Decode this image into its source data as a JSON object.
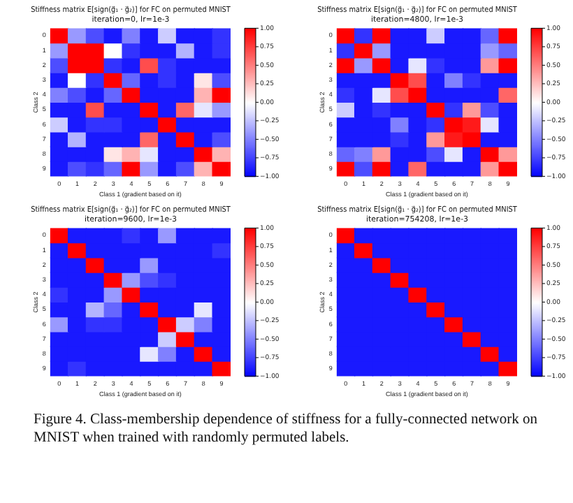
{
  "chart_data": [
    {
      "type": "heatmap",
      "title": "Stiffness matrix E[sign(g⃗₁ · g⃗₂)] for FC on permuted MNIST",
      "subtitle": "iteration=0, lr=1e-3",
      "xlabel": "Class 1 (gradient based on it)",
      "ylabel": "Class 2",
      "categories": [
        "0",
        "1",
        "2",
        "3",
        "4",
        "5",
        "6",
        "7",
        "8",
        "9"
      ],
      "y_categories": [
        "0",
        "1",
        "2",
        "3",
        "4",
        "5",
        "6",
        "7",
        "8",
        "9"
      ],
      "cells": [
        [
          1,
          -0.4,
          -0.7,
          -0.9,
          -0.5,
          -0.9,
          -0.2,
          -0.9,
          -0.9,
          -0.8
        ],
        [
          -0.4,
          1,
          1,
          0,
          -0.8,
          -0.9,
          -0.9,
          -0.3,
          -0.9,
          -0.8
        ],
        [
          -0.7,
          1,
          1,
          -0.8,
          -0.9,
          0.7,
          -0.8,
          -0.9,
          -0.9,
          -0.9
        ],
        [
          -0.9,
          0,
          -0.8,
          1,
          -0.6,
          -0.9,
          -0.8,
          -0.9,
          0.1,
          -0.7
        ],
        [
          -0.5,
          -0.7,
          -0.9,
          -0.6,
          1,
          -0.9,
          -0.9,
          -0.9,
          0.3,
          1
        ],
        [
          -0.9,
          -0.9,
          0.7,
          -0.9,
          -0.9,
          1,
          -0.9,
          0.6,
          -0.1,
          -0.4
        ],
        [
          -0.2,
          -0.9,
          -0.8,
          -0.8,
          -0.9,
          -0.9,
          1,
          -0.9,
          -0.9,
          -0.9
        ],
        [
          -0.9,
          -0.3,
          -0.9,
          -0.9,
          -0.9,
          0.6,
          -0.9,
          1,
          -0.9,
          -0.7
        ],
        [
          -0.9,
          -0.9,
          -0.9,
          0.1,
          0.3,
          -0.1,
          -0.9,
          -0.9,
          1,
          0.3
        ],
        [
          -0.9,
          -0.7,
          -0.8,
          -0.6,
          1,
          -0.4,
          -0.9,
          -0.7,
          0.3,
          1
        ]
      ],
      "clim": [
        -1,
        1
      ],
      "cticks": [
        {
          "value": -1,
          "label": "−1.00"
        },
        {
          "value": -0.75,
          "label": "−0.75"
        },
        {
          "value": -0.5,
          "label": "−0.50"
        },
        {
          "value": -0.25,
          "label": "−0.25"
        },
        {
          "value": 0,
          "label": "0.00"
        },
        {
          "value": 0.25,
          "label": "0.25"
        },
        {
          "value": 0.5,
          "label": "0.50"
        },
        {
          "value": 0.75,
          "label": "0.75"
        },
        {
          "value": 1,
          "label": "1.00"
        }
      ]
    },
    {
      "type": "heatmap",
      "title": "Stiffness matrix E[sign(g⃗₁ · g⃗₂)] for FC on permuted MNIST",
      "subtitle": "iteration=4800, lr=1e-3",
      "xlabel": "Class 1 (gradient based on it)",
      "ylabel": "Class 2",
      "categories": [
        "0",
        "1",
        "2",
        "3",
        "4",
        "5",
        "6",
        "7",
        "8",
        "9"
      ],
      "y_categories": [
        "0",
        "1",
        "2",
        "3",
        "4",
        "5",
        "6",
        "7",
        "8",
        "9"
      ],
      "cells": [
        [
          1,
          -0.8,
          1,
          -0.9,
          -0.9,
          -0.2,
          -0.9,
          -0.9,
          -0.6,
          1
        ],
        [
          -0.8,
          1,
          -0.4,
          -0.9,
          -0.9,
          -0.9,
          -0.9,
          -0.9,
          -0.4,
          -0.6
        ],
        [
          1,
          -0.4,
          1,
          -0.9,
          -0.1,
          -0.8,
          -0.9,
          -0.9,
          0.4,
          1
        ],
        [
          -0.9,
          -0.9,
          -0.9,
          1,
          0.7,
          -0.9,
          -0.5,
          -0.8,
          -0.9,
          -0.9
        ],
        [
          -0.8,
          -0.9,
          -0.1,
          0.7,
          1,
          -0.9,
          -0.9,
          -0.9,
          -0.9,
          0.6
        ],
        [
          -0.2,
          -0.9,
          -0.8,
          -0.9,
          -0.9,
          1,
          -0.8,
          0.4,
          -0.7,
          -0.9
        ],
        [
          -0.9,
          -0.9,
          -0.9,
          -0.5,
          -0.9,
          -0.8,
          1,
          0.9,
          -0.1,
          -0.9
        ],
        [
          -0.9,
          -0.9,
          -0.9,
          -0.8,
          -0.9,
          0.4,
          0.9,
          1,
          -0.9,
          -0.9
        ],
        [
          -0.6,
          -0.5,
          0.4,
          -0.9,
          -0.9,
          -0.7,
          -0.1,
          -0.9,
          1,
          0.4
        ],
        [
          1,
          -0.7,
          1,
          -0.9,
          0.6,
          -0.9,
          -0.9,
          -0.9,
          0.4,
          1
        ]
      ],
      "clim": [
        -1,
        1
      ],
      "cticks": [
        {
          "value": -1,
          "label": "−1.00"
        },
        {
          "value": -0.75,
          "label": "−0.75"
        },
        {
          "value": -0.5,
          "label": "−0.50"
        },
        {
          "value": -0.25,
          "label": "−0.25"
        },
        {
          "value": 0,
          "label": "0.00"
        },
        {
          "value": 0.25,
          "label": "0.25"
        },
        {
          "value": 0.5,
          "label": "0.50"
        },
        {
          "value": 0.75,
          "label": "0.75"
        },
        {
          "value": 1,
          "label": "1.00"
        }
      ]
    },
    {
      "type": "heatmap",
      "title": "Stiffness matrix E[sign(g⃗₁ · g⃗₂)] for FC on permuted MNIST",
      "subtitle": "iteration=9600, lr=1e-3",
      "xlabel": "Class 1 (gradient based on it)",
      "ylabel": "Class 2",
      "categories": [
        "0",
        "1",
        "2",
        "3",
        "4",
        "5",
        "6",
        "7",
        "8",
        "9"
      ],
      "y_categories": [
        "0",
        "1",
        "2",
        "3",
        "4",
        "5",
        "6",
        "7",
        "8",
        "9"
      ],
      "cells": [
        [
          1,
          -0.9,
          -0.9,
          -0.9,
          -0.8,
          -0.9,
          -0.4,
          -0.9,
          -0.9,
          -0.9
        ],
        [
          -0.9,
          1,
          -0.9,
          -0.9,
          -0.9,
          -0.9,
          -0.9,
          -0.9,
          -0.9,
          -0.8
        ],
        [
          -0.9,
          -0.9,
          1,
          -0.9,
          -0.9,
          -0.4,
          -0.9,
          -0.9,
          -0.9,
          -0.9
        ],
        [
          -0.9,
          -0.9,
          -0.9,
          1,
          -0.4,
          -0.7,
          -0.8,
          -0.9,
          -0.9,
          -0.9
        ],
        [
          -0.8,
          -0.9,
          -0.9,
          -0.4,
          1,
          -0.9,
          -0.9,
          -0.9,
          -0.9,
          -0.9
        ],
        [
          -0.9,
          -0.9,
          -0.3,
          -0.6,
          -0.9,
          1,
          -0.9,
          -0.9,
          -0.1,
          -0.9
        ],
        [
          -0.4,
          -0.9,
          -0.8,
          -0.8,
          -0.9,
          -0.9,
          1,
          -0.2,
          -0.5,
          -0.9
        ],
        [
          -0.9,
          -0.9,
          -0.9,
          -0.9,
          -0.9,
          -0.9,
          -0.2,
          1,
          -0.9,
          -0.9
        ],
        [
          -0.9,
          -0.9,
          -0.9,
          -0.9,
          -0.9,
          -0.1,
          -0.5,
          -0.9,
          1,
          -0.9
        ],
        [
          -0.9,
          -0.8,
          -0.9,
          -0.9,
          -0.9,
          -0.9,
          -0.9,
          -0.9,
          -0.9,
          1
        ]
      ],
      "clim": [
        -1,
        1
      ],
      "cticks": [
        {
          "value": -1,
          "label": "−1.00"
        },
        {
          "value": -0.75,
          "label": "−0.75"
        },
        {
          "value": -0.5,
          "label": "−0.50"
        },
        {
          "value": -0.25,
          "label": "−0.25"
        },
        {
          "value": 0,
          "label": "0.00"
        },
        {
          "value": 0.25,
          "label": "0.25"
        },
        {
          "value": 0.5,
          "label": "0.50"
        },
        {
          "value": 0.75,
          "label": "0.75"
        },
        {
          "value": 1,
          "label": "1.00"
        }
      ]
    },
    {
      "type": "heatmap",
      "title": "Stiffness matrix E[sign(g⃗₁ · g⃗₂)] for FC on permuted MNIST",
      "subtitle": "iteration=754208, lr=1e-3",
      "xlabel": "Class 1 (gradient based on it)",
      "ylabel": "Class 2",
      "categories": [
        "0",
        "1",
        "2",
        "3",
        "4",
        "5",
        "6",
        "7",
        "8",
        "9"
      ],
      "y_categories": [
        "0",
        "1",
        "2",
        "3",
        "4",
        "5",
        "6",
        "7",
        "8",
        "9"
      ],
      "cells": [
        [
          1,
          -0.9,
          -0.9,
          -0.9,
          -0.9,
          -0.9,
          -0.9,
          -0.9,
          -0.9,
          -0.9
        ],
        [
          -0.9,
          1,
          -0.9,
          -0.9,
          -0.9,
          -0.9,
          -0.9,
          -0.9,
          -0.9,
          -0.9
        ],
        [
          -0.9,
          -0.9,
          1,
          -0.9,
          -0.9,
          -0.9,
          -0.9,
          -0.9,
          -0.9,
          -0.9
        ],
        [
          -0.9,
          -0.9,
          -0.9,
          1,
          -0.9,
          -0.9,
          -0.9,
          -0.9,
          -0.9,
          -0.9
        ],
        [
          -0.9,
          -0.9,
          -0.9,
          -0.9,
          1,
          -0.9,
          -0.9,
          -0.9,
          -0.9,
          -0.9
        ],
        [
          -0.9,
          -0.9,
          -0.9,
          -0.9,
          -0.9,
          1,
          -0.9,
          -0.9,
          -0.9,
          -0.9
        ],
        [
          -0.9,
          -0.9,
          -0.9,
          -0.9,
          -0.9,
          -0.9,
          1,
          -0.9,
          -0.9,
          -0.9
        ],
        [
          -0.9,
          -0.9,
          -0.9,
          -0.9,
          -0.9,
          -0.9,
          -0.9,
          1,
          -0.9,
          -0.9
        ],
        [
          -0.9,
          -0.9,
          -0.9,
          -0.9,
          -0.9,
          -0.9,
          -0.9,
          -0.9,
          1,
          -0.9
        ],
        [
          -0.9,
          -0.9,
          -0.9,
          -0.9,
          -0.9,
          -0.9,
          -0.9,
          -0.9,
          -0.9,
          1
        ]
      ],
      "clim": [
        -1,
        1
      ],
      "cticks": [
        {
          "value": -1,
          "label": "−1.00"
        },
        {
          "value": -0.75,
          "label": "−0.75"
        },
        {
          "value": -0.5,
          "label": "−0.50"
        },
        {
          "value": -0.25,
          "label": "−0.25"
        },
        {
          "value": 0,
          "label": "0.00"
        },
        {
          "value": 0.25,
          "label": "0.25"
        },
        {
          "value": 0.5,
          "label": "0.50"
        },
        {
          "value": 0.75,
          "label": "0.75"
        },
        {
          "value": 1,
          "label": "1.00"
        }
      ],
      "annotations": [
        "Figure 4. Class-membership dependence of stiffness for a fully-connected network on MNIST when trained with randomly permuted labels."
      ]
    }
  ]
}
